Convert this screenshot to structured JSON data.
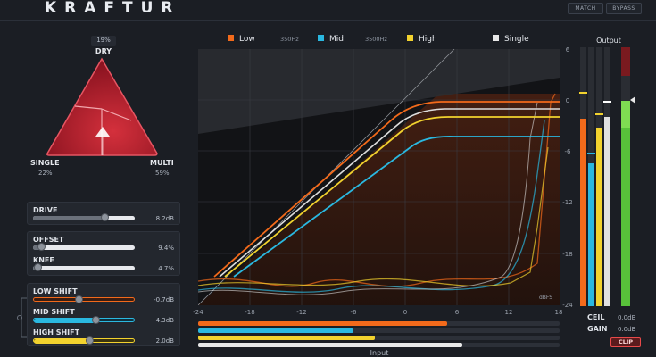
{
  "header": {
    "brand": "KRAFTUR",
    "match_label": "MATCH",
    "bypass_label": "BYPASS"
  },
  "mixer": {
    "dry_value": "19%",
    "dry_label": "DRY",
    "single_label": "SINGLE",
    "single_value": "22%",
    "multi_label": "MULTI",
    "multi_value": "59%"
  },
  "controls": {
    "drive": {
      "label": "DRIVE",
      "value": "8.2dB",
      "level": 0.7
    },
    "offset": {
      "label": "OFFSET",
      "value": "9.4%",
      "level": 0.08
    },
    "knee": {
      "label": "KNEE",
      "value": "4.7%",
      "level": 0.04
    },
    "low_shift": {
      "label": "LOW SHIFT",
      "value": "-0.7dB",
      "level": 0.45
    },
    "mid_shift": {
      "label": "MID SHIFT",
      "value": "4.3dB",
      "level": 0.62
    },
    "high_shift": {
      "label": "HIGH SHIFT",
      "value": "2.0dB",
      "level": 0.55
    }
  },
  "bands": {
    "low": {
      "label": "Low",
      "color": "#f26a1b"
    },
    "mid": {
      "label": "Mid",
      "color": "#2ab8e0"
    },
    "high": {
      "label": "High",
      "color": "#f2d22e"
    },
    "single": {
      "label": "Single",
      "color": "#e8e8e8"
    },
    "crossover_low": "350Hz",
    "crossover_high": "3500Hz"
  },
  "graph": {
    "x_ticks": [
      "-24",
      "-18",
      "-12",
      "-6",
      "0",
      "6",
      "12",
      "18"
    ],
    "y_ticks": [
      "6",
      "0",
      "-6",
      "-12",
      "-18",
      "-24"
    ],
    "input_label": "Input",
    "db_unit": "dBFS"
  },
  "input_meters": {
    "low_level": 0.69,
    "mid_level": 0.43,
    "high_level": 0.49,
    "single_level": 0.73
  },
  "output": {
    "label": "Output",
    "ceil_label": "CEIL",
    "ceil_value": "0.0dB",
    "gain_label": "GAIN",
    "gain_value": "0.0dB",
    "clip_label": "CLIP"
  }
}
